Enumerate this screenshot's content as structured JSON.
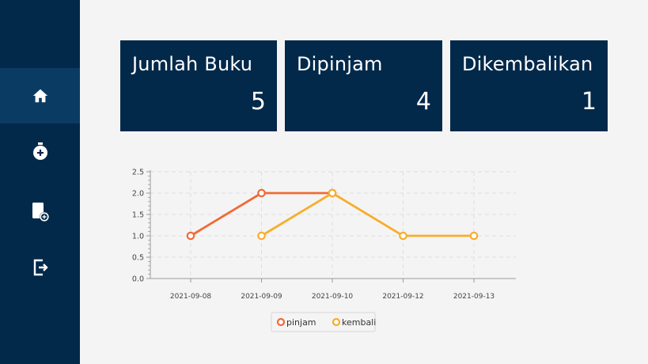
{
  "sidebar": {
    "items": [
      {
        "icon": "home-icon",
        "active": true
      },
      {
        "icon": "add-circle-icon",
        "active": false
      },
      {
        "icon": "add-book-icon",
        "active": false
      },
      {
        "icon": "logout-icon",
        "active": false
      }
    ]
  },
  "cards": [
    {
      "title": "Jumlah Buku",
      "value": "5"
    },
    {
      "title": "Dipinjam",
      "value": "4"
    },
    {
      "title": "Dikembalikan",
      "value": "1"
    }
  ],
  "colors": {
    "sidebar": "#03294a",
    "sidebar_active": "#0a3b63",
    "card": "#03294a",
    "pinjam": "#f06a35",
    "kembali": "#f8ad2a"
  },
  "chart_data": {
    "type": "line",
    "categories": [
      "2021-09-08",
      "2021-09-09",
      "2021-09-10",
      "2021-09-12",
      "2021-09-13"
    ],
    "series": [
      {
        "name": "pinjam",
        "values": [
          1.0,
          2.0,
          2.0,
          null,
          null
        ]
      },
      {
        "name": "kembali",
        "values": [
          null,
          1.0,
          2.0,
          1.0,
          1.0
        ]
      }
    ],
    "y_ticks": [
      "0.0",
      "0.5",
      "1.0",
      "1.5",
      "2.0",
      "2.5"
    ],
    "ylim": [
      0,
      2.5
    ],
    "grid": true,
    "legend_position": "bottom"
  }
}
